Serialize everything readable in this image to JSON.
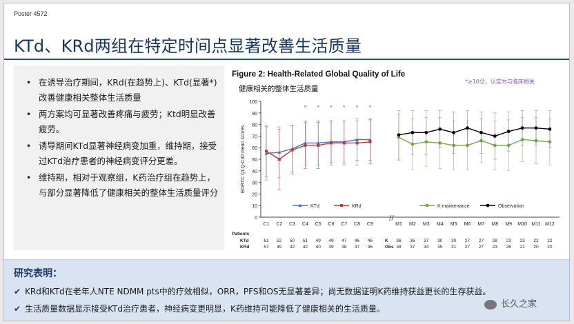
{
  "poster_label": "Poster 4572",
  "slide_title": "KTd、KRd两组在特定时间点显著改善生活质量",
  "bullets": [
    "在诱导治疗期间，KRd(在趋势上)、KTd(显著*)改善健康相关整体生活质量",
    "两方案均可显著改善疼痛与疲劳；Ktd明显改善疲劳。",
    "诱导期间KTd显著神经病变加重，维持期，接受过KTd治疗患者的神经病变评分更差。",
    "维持期，相对于观察组，K药治疗组在趋势上，与部分显著降低了健康相关的整体生活质量评分"
  ],
  "figure": {
    "title": "Figure 2: Health-Related Global Quality of Life",
    "subtitle": "健康相关的整体生活质量",
    "note": "*≥10分，认定为与临床相关"
  },
  "chart_data": {
    "type": "line",
    "ylabel": "EORTC QLQ-C30 mean scores",
    "ylim": [
      0,
      100
    ],
    "yticks": [
      0,
      10,
      20,
      30,
      40,
      50,
      60,
      70,
      80,
      90,
      100
    ],
    "grid": false,
    "induction": {
      "categories": [
        "C1",
        "C2",
        "C3",
        "C4",
        "C5",
        "C6",
        "C7",
        "C8",
        "C9"
      ],
      "significant": [
        "C4",
        "C5",
        "C6",
        "C7",
        "C8",
        "C9"
      ],
      "series": [
        {
          "name": "KTd",
          "color": "#4472c4",
          "values": [
            55,
            56,
            59,
            64,
            64,
            65,
            65,
            67,
            67
          ],
          "err": [
            23,
            22,
            20,
            19,
            19,
            18,
            18,
            18,
            18
          ]
        },
        {
          "name": "KRd",
          "color": "#c0392b",
          "values": [
            57,
            50,
            58,
            62,
            62,
            64,
            64,
            64,
            65
          ],
          "err": [
            22,
            26,
            21,
            20,
            20,
            19,
            19,
            19,
            19
          ]
        }
      ]
    },
    "maintenance": {
      "categories": [
        "M1",
        "M2",
        "M3",
        "M4",
        "M5",
        "M6",
        "M7",
        "M8",
        "M9",
        "M10",
        "M11",
        "M12"
      ],
      "series": [
        {
          "name": "K maintenance",
          "color": "#70a84a",
          "values": [
            69,
            63,
            65,
            64,
            62,
            62,
            66,
            62,
            62,
            67,
            66,
            65
          ],
          "err": [
            20,
            22,
            21,
            22,
            21,
            21,
            19,
            21,
            22,
            19,
            20,
            20
          ]
        },
        {
          "name": "Observation",
          "color": "#000000",
          "values": [
            71,
            73,
            73,
            76,
            73,
            77,
            73,
            70,
            74,
            77,
            77,
            76
          ],
          "err": [
            21,
            19,
            19,
            16,
            18,
            15,
            18,
            20,
            17,
            15,
            15,
            16
          ]
        }
      ]
    },
    "patients": {
      "label": "Patients",
      "rows": [
        {
          "label": "KTd",
          "values": [
            "61",
            "52",
            "50",
            "51",
            "49",
            "49",
            "47",
            "46",
            "46"
          ]
        },
        {
          "label": "KRd",
          "values": [
            "57",
            "49",
            "42",
            "42",
            "40",
            "39",
            "38",
            "37",
            "36"
          ]
        },
        {
          "label": "K",
          "values": [
            "36",
            "36",
            "37",
            "30",
            "30",
            "27",
            "27",
            "28",
            "23",
            "23",
            "22",
            "22"
          ]
        },
        {
          "label": "Obs",
          "values": [
            "38",
            "37",
            "34",
            "35",
            "31",
            "27",
            "27",
            "23",
            "26",
            "21",
            "20",
            "20"
          ]
        }
      ]
    }
  },
  "conclusion": {
    "heading": "研究表明：",
    "lines": [
      "KRd和KTd在老年人NTE NDMM pts中的疗效相似，ORR，PFS和OS无显著差异；尚无数据证明K药维持获益更长的生存获益。",
      "生活质量数据显示接受KTd治疗患者，神经病变更明显，K药维持可能降低了健康相关的生活质量。"
    ],
    "check_icon": "✔"
  },
  "watermark": "长久之家"
}
